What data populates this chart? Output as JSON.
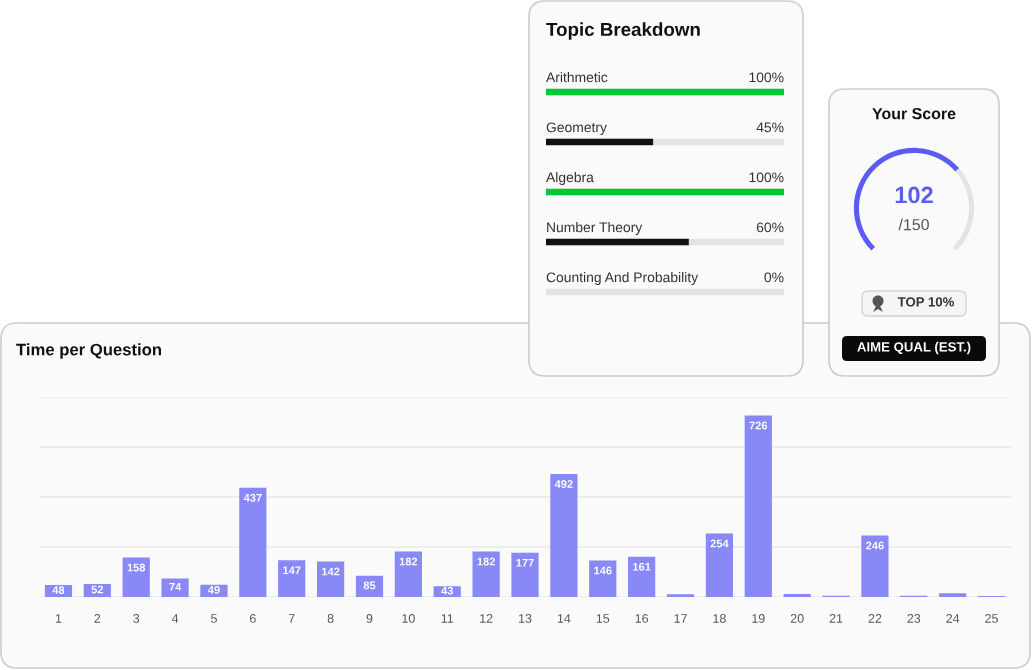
{
  "chart_data": [
    {
      "type": "bar",
      "orientation": "horizontal",
      "title": "Topic Breakdown",
      "categories": [
        "Arithmetic",
        "Geometry",
        "Algebra",
        "Number Theory",
        "Counting And Probability"
      ],
      "tick_labels": "y",
      "values": [
        100,
        45,
        100,
        60,
        0
      ],
      "colors": [
        "#05c835",
        "#111111",
        "#05c835",
        "#111111",
        "#111111"
      ],
      "value_labels": [
        "100%",
        "45%",
        "100%",
        "60%",
        "0%"
      ]
    },
    {
      "type": "donut",
      "title": "Your Score",
      "categories": [
        null,
        null
      ],
      "values": [
        68,
        32
      ],
      "colors": [
        "#5b5cf2",
        "#e4e4e8"
      ],
      "annotations": [
        "102",
        "/150",
        "TOP 10%",
        "AIME QUAL (EST.)"
      ]
    },
    {
      "type": "bar",
      "title": "Time per Question",
      "categories": [
        "1",
        "2",
        "3",
        "4",
        "5",
        "6",
        "7",
        "8",
        "9",
        "10",
        "11",
        "12",
        "13",
        "14",
        "15",
        "16",
        "17",
        "18",
        "19",
        "20",
        "21",
        "22",
        "23",
        "24",
        "25"
      ],
      "values": [
        48,
        52,
        158,
        74,
        49,
        437,
        147,
        142,
        85,
        182,
        43,
        182,
        177,
        492,
        146,
        161,
        11,
        254,
        726,
        12,
        5,
        246,
        5,
        15,
        4
      ],
      "value_labels": [
        "48",
        "52",
        "158",
        "74",
        "49",
        "437",
        "147",
        "142",
        "85",
        "182",
        "43",
        "182",
        "177",
        "492",
        "146",
        "161",
        null,
        "254",
        "726",
        null,
        null,
        "246",
        null,
        null,
        null
      ],
      "color": "#8888f6",
      "ylim": [
        0,
        800
      ],
      "yticks": [
        {
          "value": 0,
          "label": null
        },
        {
          "value": 200,
          "label": null
        },
        {
          "value": 400,
          "label": null
        },
        {
          "value": 600,
          "label": null
        },
        {
          "value": 800,
          "label": null
        }
      ],
      "grid": "y",
      "tick_labels": "x"
    }
  ]
}
